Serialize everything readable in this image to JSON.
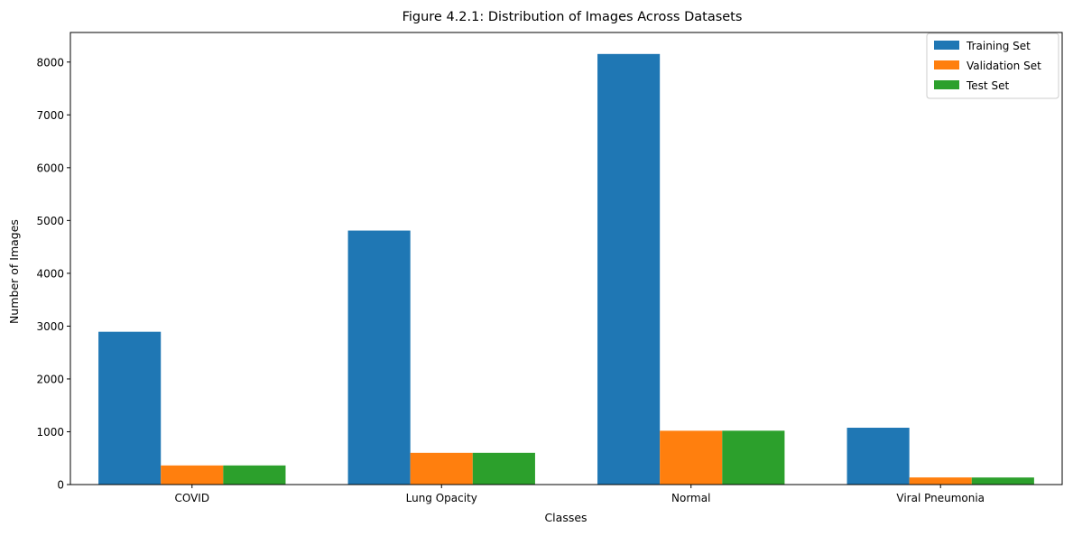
{
  "chart_data": {
    "type": "bar",
    "title": "Figure 4.2.1: Distribution of Images Across Datasets",
    "xlabel": "Classes",
    "ylabel": "Number of Images",
    "categories": [
      "COVID",
      "Lung Opacity",
      "Normal",
      "Viral Pneumonia"
    ],
    "series": [
      {
        "name": "Training Set",
        "color": "#1f77b4",
        "values": [
          2893,
          4809,
          8153,
          1076
        ]
      },
      {
        "name": "Validation Set",
        "color": "#ff7f0e",
        "values": [
          362,
          601,
          1019,
          135
        ]
      },
      {
        "name": "Test Set",
        "color": "#2ca02c",
        "values": [
          362,
          601,
          1020,
          134
        ]
      }
    ],
    "ylim": [
      0,
      8560
    ],
    "yticks": [
      0,
      1000,
      2000,
      3000,
      4000,
      5000,
      6000,
      7000,
      8000
    ],
    "grid": false,
    "legend": "top-right"
  }
}
